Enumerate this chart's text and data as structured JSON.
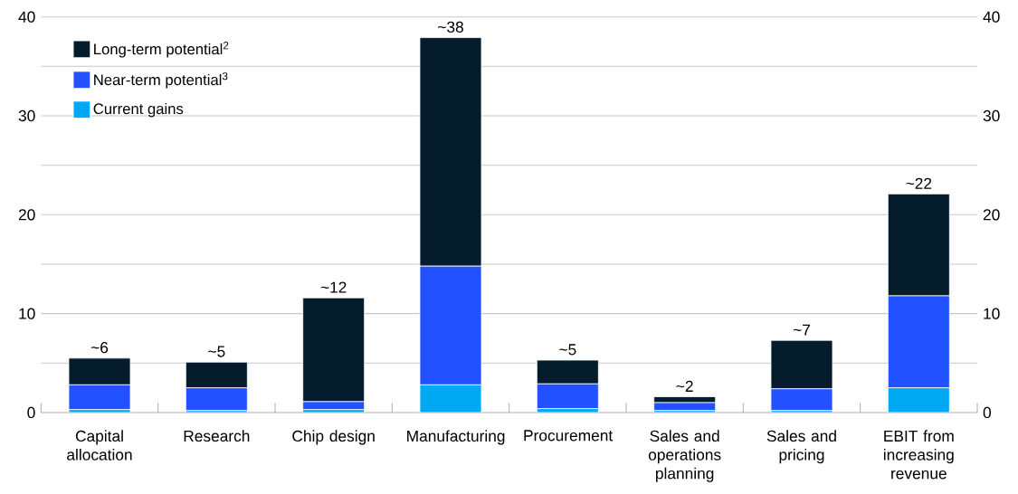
{
  "chart_data": {
    "type": "bar",
    "stacked": true,
    "categories": [
      "Capital allocation",
      "Research",
      "Chip design",
      "Manufacturing",
      "Procurement",
      "Sales and operations planning",
      "Sales and pricing",
      "EBIT from increasing revenue"
    ],
    "series": [
      {
        "name": "Current gains",
        "color": "#00a9f4",
        "values": [
          0.3,
          0.2,
          0.3,
          2.8,
          0.4,
          0.2,
          0.2,
          2.5
        ]
      },
      {
        "name": "Near-term potential$^{3}$",
        "color": "#2251ff",
        "values": [
          2.5,
          2.3,
          0.8,
          12.0,
          2.5,
          0.8,
          2.2,
          9.3
        ]
      },
      {
        "name": "Long-term potential$^{2}$",
        "color": "#051c2c",
        "values": [
          2.7,
          2.6,
          10.5,
          23.1,
          2.4,
          0.6,
          4.9,
          10.3
        ]
      }
    ],
    "totals": [
      "~6",
      "~5",
      "~12",
      "~38",
      "~5",
      "~2",
      "~7",
      "~22"
    ],
    "ylim": [
      0,
      40
    ],
    "yticks": [
      0,
      {
        "value": 5,
        "label": null
      },
      10,
      {
        "value": 15,
        "label": null
      },
      20,
      {
        "value": 25,
        "label": null
      },
      30,
      {
        "value": 35,
        "label": null
      },
      40
    ],
    "y2lim": [
      0,
      40
    ],
    "y2ticks": [
      0,
      10,
      20,
      30,
      40
    ],
    "grid": "y",
    "legend": "top left"
  }
}
